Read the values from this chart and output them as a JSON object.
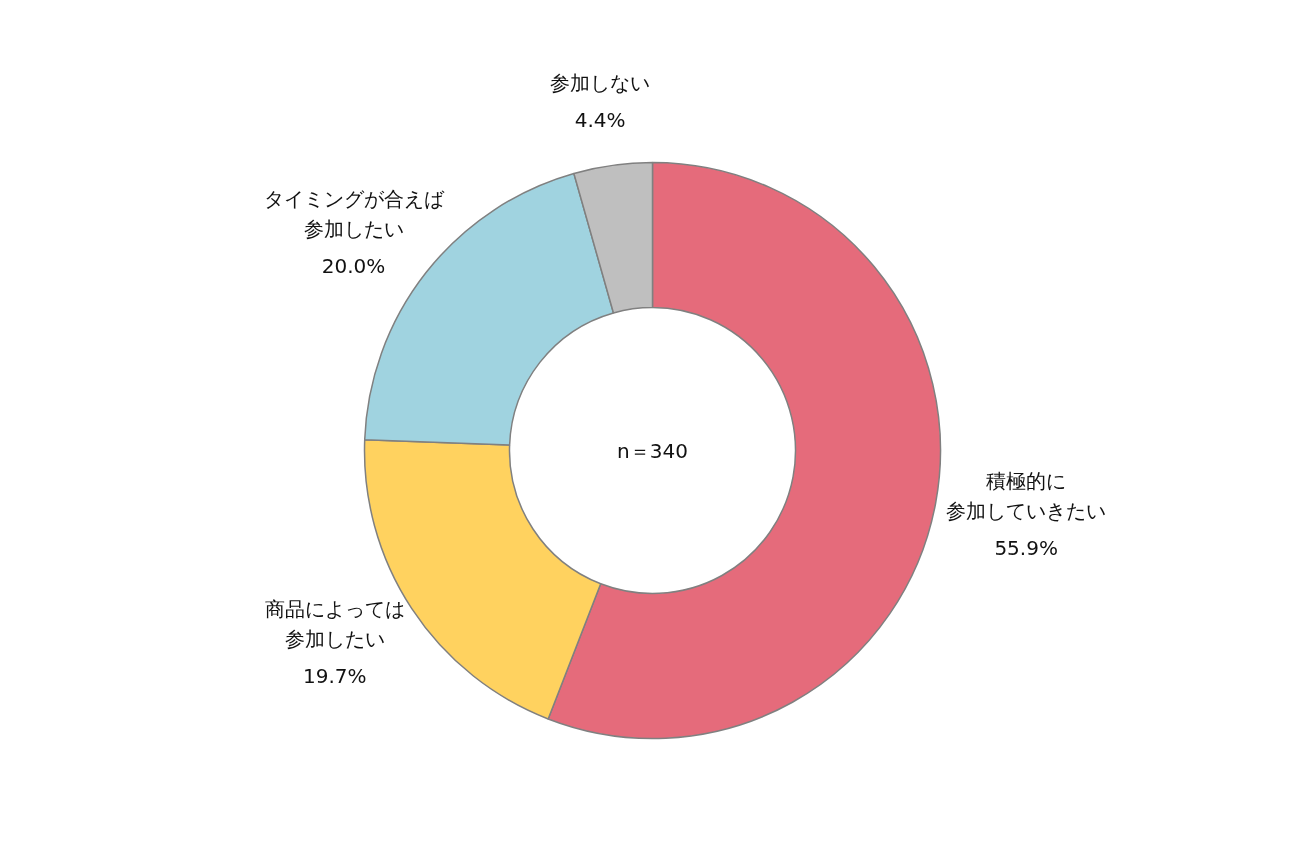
{
  "chart_data": {
    "type": "donut",
    "categories": [
      "積極的に参加していきたい",
      "商品によっては参加したい",
      "タイミングが合えば参加したい",
      "参加しない"
    ],
    "values": [
      55.9,
      19.7,
      20.0,
      4.4
    ],
    "colors": [
      "#e56b7b",
      "#ffd25f",
      "#a0d3e0",
      "#bfbfbf"
    ],
    "value_labels": [
      "55.9%",
      "19.7%",
      "20.0%",
      "4.4%"
    ],
    "annotations": [
      "n＝340"
    ]
  }
}
